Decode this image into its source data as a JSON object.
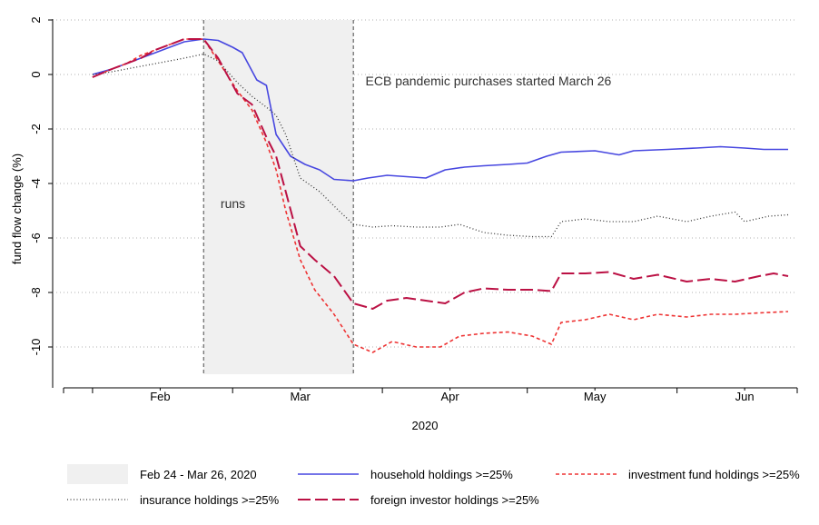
{
  "chart_data": {
    "type": "line",
    "xlabel": "2020",
    "ylabel": "fund flow change (%)",
    "xlim": [
      "2020-01-26",
      "2020-06-24"
    ],
    "ylim": [
      -11,
      2
    ],
    "grid": true,
    "x_ticks": [
      {
        "label": "Feb",
        "date": "2020-02-15"
      },
      {
        "label": "Mar",
        "date": "2020-03-15"
      },
      {
        "label": "Apr",
        "date": "2020-04-15"
      },
      {
        "label": "May",
        "date": "2020-05-15"
      },
      {
        "label": "Jun",
        "date": "2020-06-15"
      }
    ],
    "x_minor_ticks": [
      "2020-02-01",
      "2020-03-01",
      "2020-04-01",
      "2020-05-01",
      "2020-06-01"
    ],
    "y_ticks": [
      2,
      0,
      -2,
      -4,
      -6,
      -8,
      -10
    ],
    "shaded_period": {
      "start": "2020-02-24",
      "end": "2020-03-26",
      "y_range": [
        -11,
        2
      ],
      "color": "#f0f0f0",
      "label": "runs"
    },
    "vlines": [
      "2020-02-24",
      "2020-03-26"
    ],
    "annotations": [
      {
        "text": "ECB pandemic purchases started March 26",
        "date": "2020-03-27",
        "y": -0.4
      },
      {
        "text": "runs",
        "date": "2020-02-26",
        "y": -4.9
      }
    ],
    "legend_position": "bottom",
    "legend": [
      {
        "label": "Feb 24 - Mar 26, 2020",
        "kind": "box"
      },
      {
        "label": "household holdings >=25%",
        "kind": "line",
        "series": 0
      },
      {
        "label": "investment fund holdings >=25%",
        "kind": "line",
        "series": 1
      },
      {
        "label": "insurance holdings >=25%",
        "kind": "line",
        "series": 2
      },
      {
        "label": "foreign investor holdings >=25%",
        "kind": "line",
        "series": 3
      }
    ],
    "series": [
      {
        "name": "household holdings >=25%",
        "color": "#4747e0",
        "style": "solid",
        "points": [
          [
            "2020-02-01",
            0.0
          ],
          [
            "2020-02-05",
            0.2
          ],
          [
            "2020-02-08",
            0.4
          ],
          [
            "2020-02-11",
            0.6
          ],
          [
            "2020-02-14",
            0.8
          ],
          [
            "2020-02-17",
            1.0
          ],
          [
            "2020-02-20",
            1.2
          ],
          [
            "2020-02-24",
            1.3
          ],
          [
            "2020-02-27",
            1.25
          ],
          [
            "2020-03-01",
            1.0
          ],
          [
            "2020-03-03",
            0.8
          ],
          [
            "2020-03-06",
            -0.2
          ],
          [
            "2020-03-08",
            -0.4
          ],
          [
            "2020-03-10",
            -2.2
          ],
          [
            "2020-03-13",
            -3.0
          ],
          [
            "2020-03-16",
            -3.3
          ],
          [
            "2020-03-19",
            -3.5
          ],
          [
            "2020-03-22",
            -3.85
          ],
          [
            "2020-03-26",
            -3.9
          ],
          [
            "2020-03-29",
            -3.8
          ],
          [
            "2020-04-02",
            -3.7
          ],
          [
            "2020-04-06",
            -3.75
          ],
          [
            "2020-04-10",
            -3.8
          ],
          [
            "2020-04-14",
            -3.5
          ],
          [
            "2020-04-18",
            -3.4
          ],
          [
            "2020-04-22",
            -3.35
          ],
          [
            "2020-04-27",
            -3.3
          ],
          [
            "2020-05-01",
            -3.25
          ],
          [
            "2020-05-05",
            -3.0
          ],
          [
            "2020-05-08",
            -2.85
          ],
          [
            "2020-05-15",
            -2.8
          ],
          [
            "2020-05-20",
            -2.95
          ],
          [
            "2020-05-23",
            -2.8
          ],
          [
            "2020-05-30",
            -2.75
          ],
          [
            "2020-06-05",
            -2.7
          ],
          [
            "2020-06-10",
            -2.65
          ],
          [
            "2020-06-15",
            -2.7
          ],
          [
            "2020-06-19",
            -2.75
          ],
          [
            "2020-06-24",
            -2.75
          ]
        ]
      },
      {
        "name": "investment fund holdings >=25%",
        "color": "#ee3333",
        "style": "dashed",
        "points": [
          [
            "2020-02-01",
            -0.1
          ],
          [
            "2020-02-05",
            0.2
          ],
          [
            "2020-02-08",
            0.4
          ],
          [
            "2020-02-11",
            0.7
          ],
          [
            "2020-02-14",
            0.9
          ],
          [
            "2020-02-17",
            1.1
          ],
          [
            "2020-02-20",
            1.3
          ],
          [
            "2020-02-24",
            1.3
          ],
          [
            "2020-02-27",
            0.5
          ],
          [
            "2020-03-02",
            -0.6
          ],
          [
            "2020-03-05",
            -1.3
          ],
          [
            "2020-03-08",
            -2.5
          ],
          [
            "2020-03-10",
            -3.5
          ],
          [
            "2020-03-12",
            -5.0
          ],
          [
            "2020-03-15",
            -6.8
          ],
          [
            "2020-03-18",
            -7.9
          ],
          [
            "2020-03-22",
            -8.8
          ],
          [
            "2020-03-26",
            -9.9
          ],
          [
            "2020-03-30",
            -10.2
          ],
          [
            "2020-04-03",
            -9.8
          ],
          [
            "2020-04-08",
            -10.0
          ],
          [
            "2020-04-13",
            -10.0
          ],
          [
            "2020-04-17",
            -9.6
          ],
          [
            "2020-04-22",
            -9.5
          ],
          [
            "2020-04-27",
            -9.45
          ],
          [
            "2020-05-02",
            -9.6
          ],
          [
            "2020-05-06",
            -9.9
          ],
          [
            "2020-05-08",
            -9.1
          ],
          [
            "2020-05-13",
            -9.0
          ],
          [
            "2020-05-18",
            -8.8
          ],
          [
            "2020-05-23",
            -9.0
          ],
          [
            "2020-05-28",
            -8.8
          ],
          [
            "2020-06-03",
            -8.9
          ],
          [
            "2020-06-08",
            -8.8
          ],
          [
            "2020-06-13",
            -8.8
          ],
          [
            "2020-06-18",
            -8.75
          ],
          [
            "2020-06-24",
            -8.7
          ]
        ]
      },
      {
        "name": "insurance holdings >=25%",
        "color": "#333333",
        "style": "dotted",
        "points": [
          [
            "2020-02-01",
            0.0
          ],
          [
            "2020-02-05",
            0.1
          ],
          [
            "2020-02-08",
            0.2
          ],
          [
            "2020-02-11",
            0.3
          ],
          [
            "2020-02-14",
            0.4
          ],
          [
            "2020-02-17",
            0.5
          ],
          [
            "2020-02-20",
            0.6
          ],
          [
            "2020-02-24",
            0.75
          ],
          [
            "2020-02-27",
            0.5
          ],
          [
            "2020-03-02",
            -0.3
          ],
          [
            "2020-03-05",
            -0.8
          ],
          [
            "2020-03-08",
            -1.2
          ],
          [
            "2020-03-10",
            -1.5
          ],
          [
            "2020-03-12",
            -2.2
          ],
          [
            "2020-03-15",
            -3.8
          ],
          [
            "2020-03-19",
            -4.3
          ],
          [
            "2020-03-23",
            -5.0
          ],
          [
            "2020-03-26",
            -5.5
          ],
          [
            "2020-03-30",
            -5.6
          ],
          [
            "2020-04-03",
            -5.55
          ],
          [
            "2020-04-08",
            -5.6
          ],
          [
            "2020-04-13",
            -5.6
          ],
          [
            "2020-04-17",
            -5.5
          ],
          [
            "2020-04-22",
            -5.8
          ],
          [
            "2020-04-27",
            -5.9
          ],
          [
            "2020-05-02",
            -5.95
          ],
          [
            "2020-05-06",
            -5.95
          ],
          [
            "2020-05-08",
            -5.4
          ],
          [
            "2020-05-13",
            -5.3
          ],
          [
            "2020-05-18",
            -5.4
          ],
          [
            "2020-05-23",
            -5.4
          ],
          [
            "2020-05-28",
            -5.2
          ],
          [
            "2020-06-03",
            -5.4
          ],
          [
            "2020-06-08",
            -5.2
          ],
          [
            "2020-06-13",
            -5.05
          ],
          [
            "2020-06-15",
            -5.4
          ],
          [
            "2020-06-20",
            -5.2
          ],
          [
            "2020-06-24",
            -5.15
          ]
        ]
      },
      {
        "name": "foreign investor holdings >=25%",
        "color": "#bb1144",
        "style": "longdash",
        "points": [
          [
            "2020-02-01",
            -0.1
          ],
          [
            "2020-02-05",
            0.2
          ],
          [
            "2020-02-08",
            0.4
          ],
          [
            "2020-02-11",
            0.6
          ],
          [
            "2020-02-14",
            0.9
          ],
          [
            "2020-02-17",
            1.1
          ],
          [
            "2020-02-20",
            1.3
          ],
          [
            "2020-02-24",
            1.3
          ],
          [
            "2020-02-27",
            0.6
          ],
          [
            "2020-03-02",
            -0.7
          ],
          [
            "2020-03-05",
            -1.1
          ],
          [
            "2020-03-08",
            -2.3
          ],
          [
            "2020-03-10",
            -3.0
          ],
          [
            "2020-03-12",
            -4.3
          ],
          [
            "2020-03-15",
            -6.3
          ],
          [
            "2020-03-18",
            -6.8
          ],
          [
            "2020-03-22",
            -7.4
          ],
          [
            "2020-03-26",
            -8.4
          ],
          [
            "2020-03-30",
            -8.6
          ],
          [
            "2020-04-02",
            -8.3
          ],
          [
            "2020-04-06",
            -8.2
          ],
          [
            "2020-04-10",
            -8.3
          ],
          [
            "2020-04-14",
            -8.4
          ],
          [
            "2020-04-18",
            -8.0
          ],
          [
            "2020-04-22",
            -7.85
          ],
          [
            "2020-04-27",
            -7.9
          ],
          [
            "2020-05-02",
            -7.9
          ],
          [
            "2020-05-06",
            -7.95
          ],
          [
            "2020-05-08",
            -7.3
          ],
          [
            "2020-05-13",
            -7.3
          ],
          [
            "2020-05-18",
            -7.25
          ],
          [
            "2020-05-23",
            -7.5
          ],
          [
            "2020-05-28",
            -7.35
          ],
          [
            "2020-06-03",
            -7.6
          ],
          [
            "2020-06-08",
            -7.5
          ],
          [
            "2020-06-13",
            -7.6
          ],
          [
            "2020-06-18",
            -7.4
          ],
          [
            "2020-06-21",
            -7.3
          ],
          [
            "2020-06-24",
            -7.4
          ]
        ]
      }
    ]
  }
}
